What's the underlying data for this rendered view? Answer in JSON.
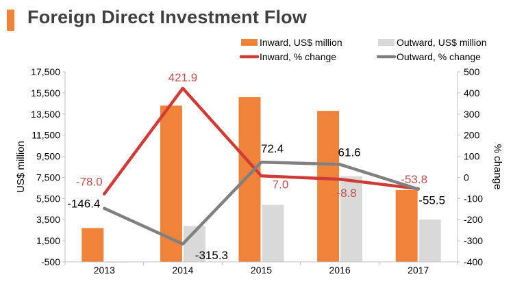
{
  "title": "Foreign Direct Investment Flow",
  "colors": {
    "accent": "#f0833a",
    "inward_bar": "#f0833a",
    "outward_bar": "#d9d9d9",
    "inward_line": "#d13b36",
    "outward_line": "#808080",
    "inward_label": "#c0504d",
    "outward_label": "#000000",
    "title_text": "#404040"
  },
  "chart_data": {
    "type": "bar",
    "title": "Foreign Direct Investment Flow",
    "categories": [
      "2013",
      "2014",
      "2015",
      "2016",
      "2017"
    ],
    "ylabel": "US$ million",
    "y2label": "% change",
    "ylim": [
      -500,
      17500
    ],
    "y2lim": [
      -400,
      500
    ],
    "yticks": [
      "-500",
      "1,500",
      "3,500",
      "5,500",
      "7,500",
      "9,500",
      "11,500",
      "13,500",
      "15,500",
      "17,500"
    ],
    "y2ticks": [
      "-400",
      "-300",
      "-200",
      "-100",
      "0",
      "100",
      "200",
      "300",
      "400",
      "500"
    ],
    "series": [
      {
        "name": "Inward, US$ million",
        "kind": "bar",
        "axis": "left",
        "values": [
          2700,
          14300,
          15100,
          13800,
          6300
        ]
      },
      {
        "name": "Outward, US$ million",
        "kind": "bar",
        "axis": "left",
        "values": [
          -500,
          2900,
          4900,
          7600,
          3500
        ]
      },
      {
        "name": "Inward, % change",
        "kind": "line",
        "axis": "right",
        "values": [
          -78.0,
          421.9,
          7.0,
          -8.8,
          -53.8
        ],
        "labels": [
          "-78.0",
          "421.9",
          "7.0",
          "-8.8",
          "-53.8"
        ]
      },
      {
        "name": "Outward, % change",
        "kind": "line",
        "axis": "right",
        "values": [
          -146.4,
          -315.3,
          72.4,
          61.6,
          -55.5
        ],
        "labels": [
          "-146.4",
          "-315.3",
          "72.4",
          "61.6",
          "-55.5"
        ]
      }
    ],
    "legend": {
      "position": "top-right",
      "entries": [
        "Inward, US$ million",
        "Outward, US$ million",
        "Inward, % change",
        "Outward, % change"
      ]
    }
  }
}
